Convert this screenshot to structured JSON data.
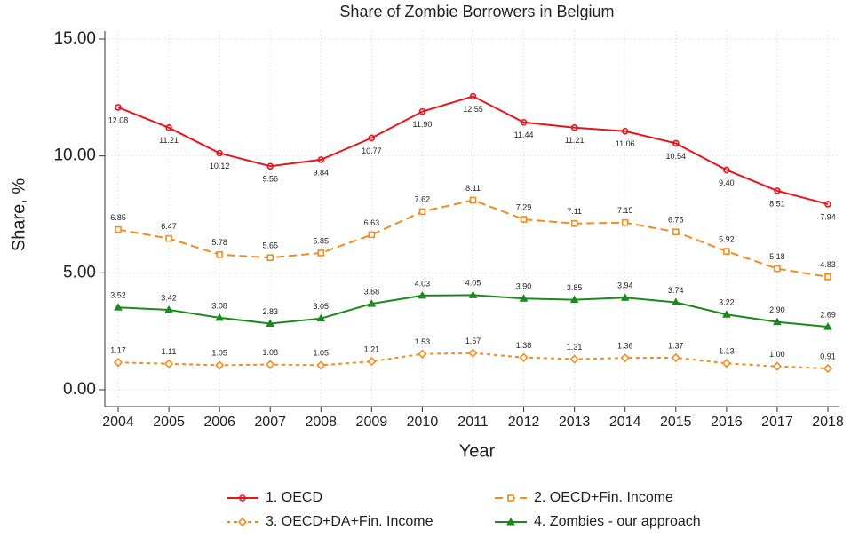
{
  "chart_data": {
    "type": "line",
    "title": "Share of Zombie Borrowers in Belgium",
    "x_label": "Year",
    "y_label": "Share, %",
    "x": [
      2004,
      2005,
      2006,
      2007,
      2008,
      2009,
      2010,
      2011,
      2012,
      2013,
      2014,
      2015,
      2016,
      2017,
      2018
    ],
    "xlim": [
      2004,
      2018
    ],
    "xticks": [
      2004,
      2005,
      2006,
      2007,
      2008,
      2009,
      2010,
      2011,
      2012,
      2013,
      2014,
      2015,
      2016,
      2017,
      2018
    ],
    "ylim": [
      0,
      15
    ],
    "yticks": [
      {
        "value": 0,
        "label": "0.00"
      },
      {
        "value": 5,
        "label": "5.00"
      },
      {
        "value": 10,
        "label": "10.00"
      },
      {
        "value": 15,
        "label": "15.00"
      }
    ],
    "grid": true,
    "legend": "bottom",
    "series": [
      {
        "name": "1. OECD",
        "color": "#e8141c",
        "marker": "circle",
        "line_style": "solid",
        "label_position": "below",
        "values": [
          12.08,
          11.21,
          10.12,
          9.56,
          9.84,
          10.77,
          11.9,
          12.55,
          11.44,
          11.21,
          11.06,
          10.54,
          9.4,
          8.51,
          7.94
        ],
        "value_labels": [
          "12.08",
          "11.21",
          "10.12",
          "9.56",
          "9.84",
          "10.77",
          "11.90",
          "12.55",
          "11.44",
          "11.21",
          "11.06",
          "10.54",
          "9.40",
          "8.51",
          "7.94"
        ]
      },
      {
        "name": "2. OECD+Fin. Income",
        "color": "#f28c1c",
        "marker": "square",
        "line_style": "dashed",
        "label_position": "above",
        "values": [
          6.85,
          6.47,
          5.78,
          5.65,
          5.85,
          6.63,
          7.62,
          8.11,
          7.29,
          7.11,
          7.15,
          6.75,
          5.92,
          5.18,
          4.83
        ],
        "value_labels": [
          "6.85",
          "6.47",
          "5.78",
          "5.65",
          "5.85",
          "6.63",
          "7.62",
          "8.11",
          "7.29",
          "7.11",
          "7.15",
          "6.75",
          "5.92",
          "5.18",
          "4.83"
        ]
      },
      {
        "name": "3. OECD+DA+Fin. Income",
        "color": "#f28c1c",
        "marker": "diamond",
        "line_style": "dotted",
        "label_position": "above",
        "values": [
          1.17,
          1.11,
          1.05,
          1.08,
          1.05,
          1.21,
          1.53,
          1.57,
          1.38,
          1.31,
          1.36,
          1.37,
          1.13,
          1.0,
          0.91
        ],
        "value_labels": [
          "1.17",
          "1.11",
          "1.05",
          "1.08",
          "1.05",
          "1.21",
          "1.53",
          "1.57",
          "1.38",
          "1.31",
          "1.36",
          "1.37",
          "1.13",
          "1.00",
          "0.91"
        ]
      },
      {
        "name": "4. Zombies - our approach",
        "color": "#1a8a1a",
        "marker": "triangle",
        "line_style": "solid",
        "label_position": "above",
        "values": [
          3.52,
          3.42,
          3.08,
          2.83,
          3.05,
          3.68,
          4.03,
          4.05,
          3.9,
          3.85,
          3.94,
          3.74,
          3.22,
          2.9,
          2.69
        ],
        "value_labels": [
          "3.52",
          "3.42",
          "3.08",
          "2.83",
          "3.05",
          "3.68",
          "4.03",
          "4.05",
          "3.90",
          "3.85",
          "3.94",
          "3.74",
          "3.22",
          "2.90",
          "2.69"
        ]
      }
    ]
  }
}
